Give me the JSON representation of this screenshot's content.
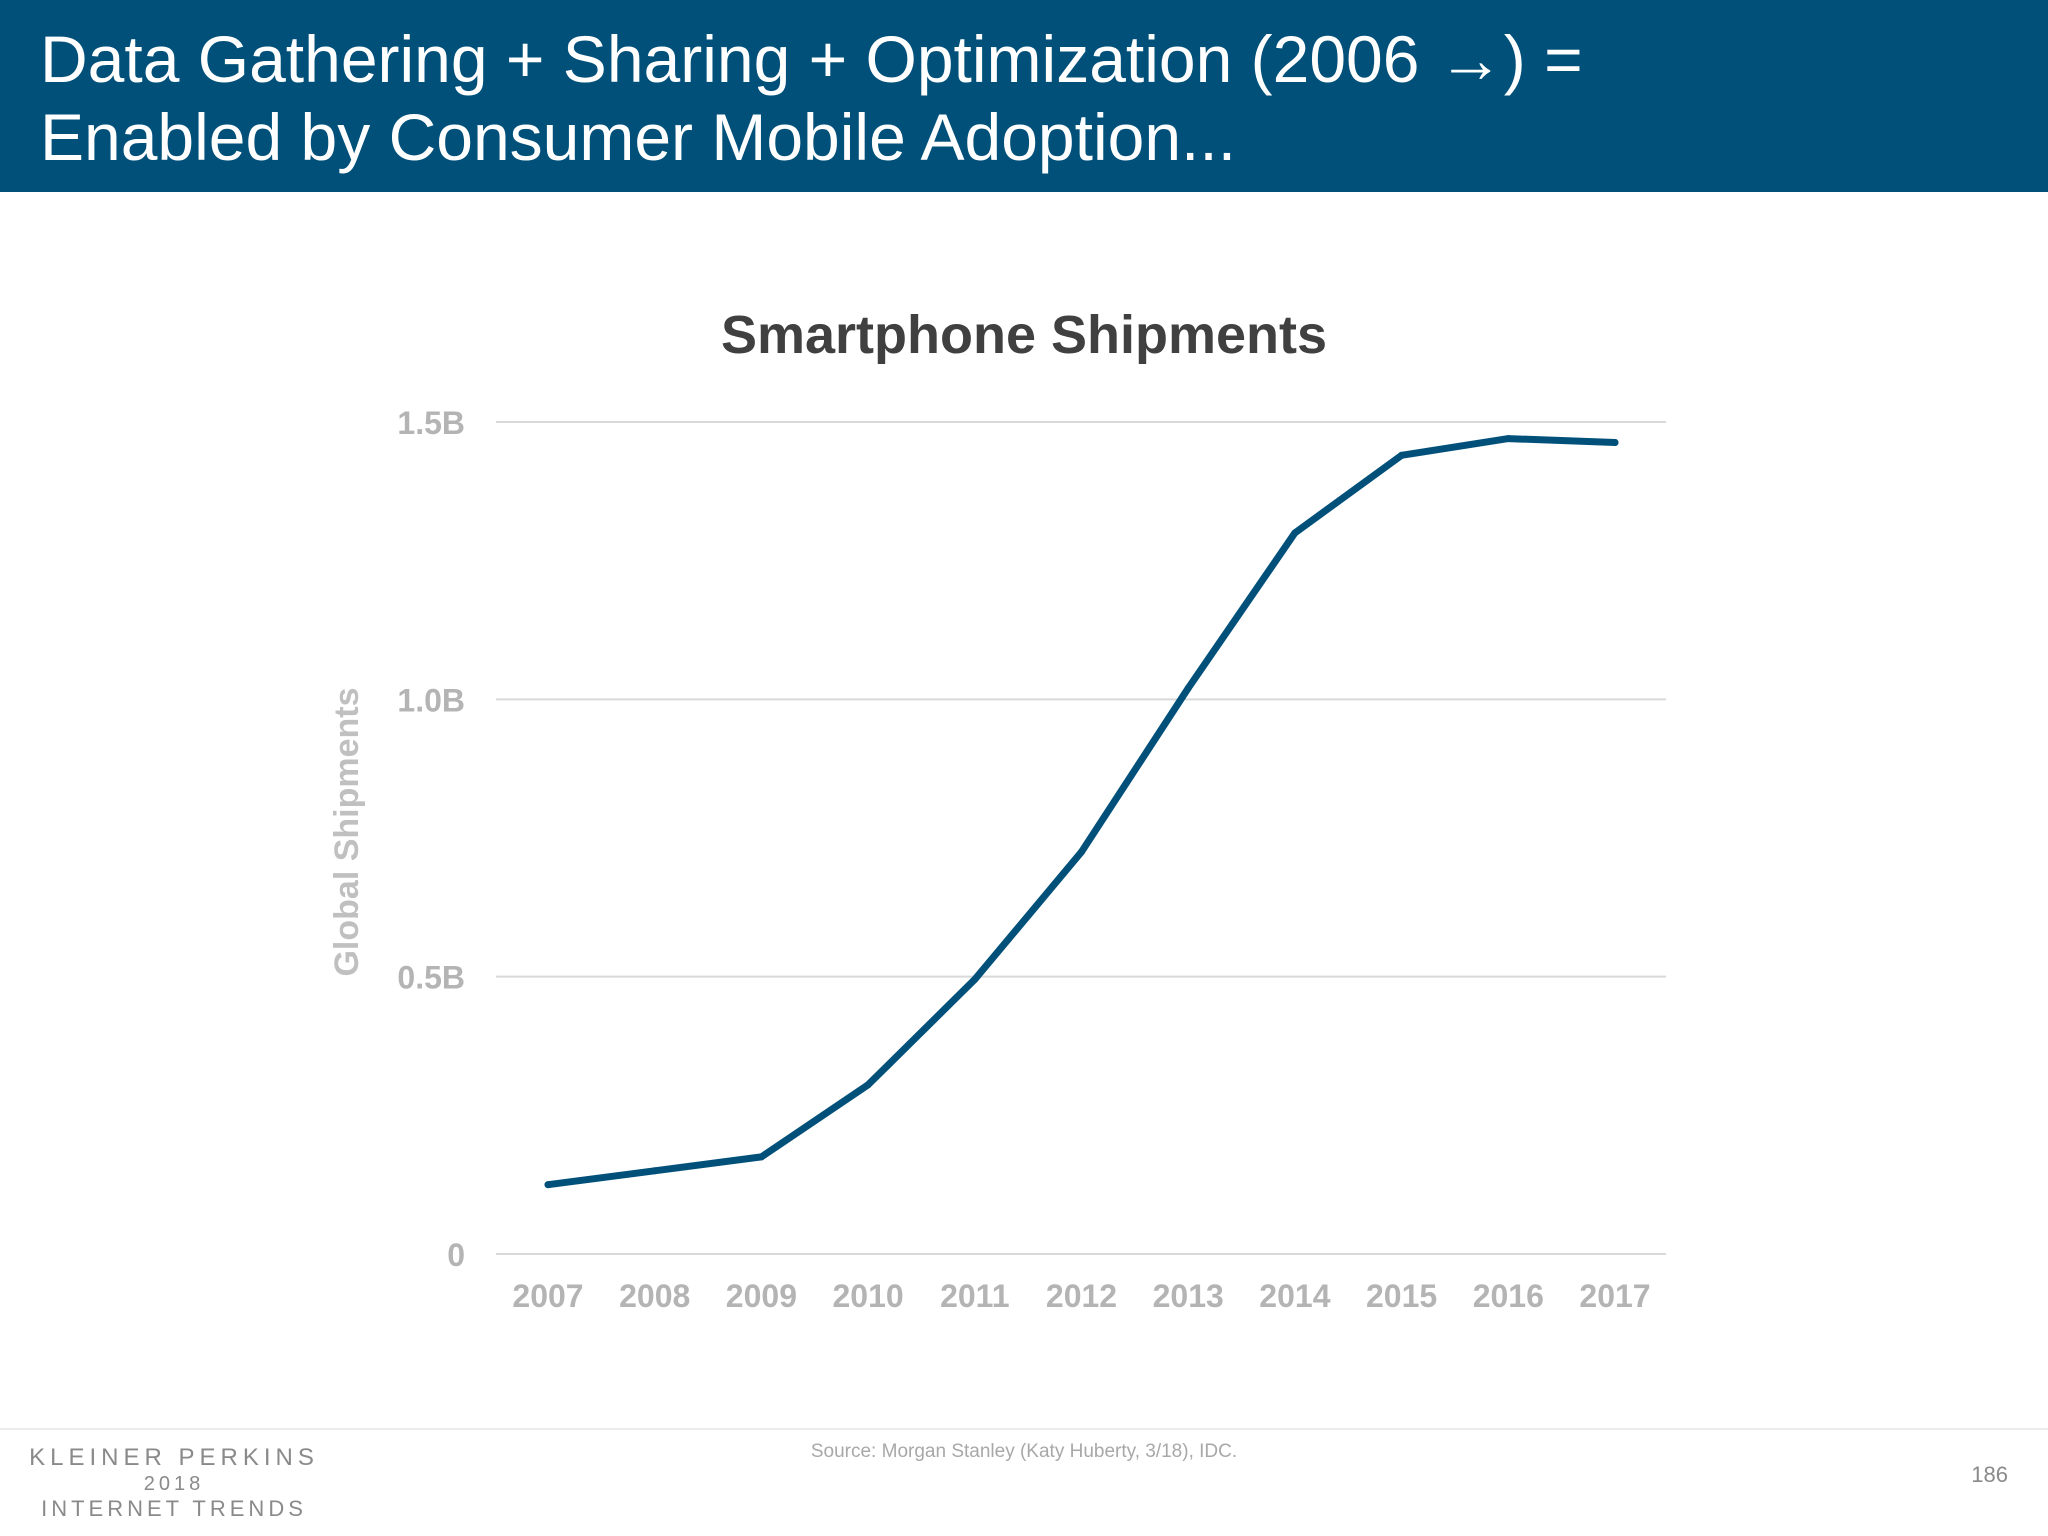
{
  "header": {
    "title_line1": "Data Gathering + Sharing + Optimization (2006 →) =",
    "title_line2": "Enabled by Consumer Mobile Adoption..."
  },
  "chart_data": {
    "type": "line",
    "title": "Smartphone Shipments",
    "xlabel": "",
    "ylabel": "Global Shipments",
    "categories": [
      "2007",
      "2008",
      "2009",
      "2010",
      "2011",
      "2012",
      "2013",
      "2014",
      "2015",
      "2016",
      "2017"
    ],
    "series": [
      {
        "values": [
          0.125,
          0.15,
          0.175,
          0.305,
          0.495,
          0.725,
          1.02,
          1.3,
          1.44,
          1.47,
          1.463
        ],
        "color": "#00507a"
      }
    ],
    "ylim": [
      0,
      1.5
    ],
    "yticks": [
      {
        "value": 0,
        "label": "0"
      },
      {
        "value": 0.5,
        "label": "0.5B"
      },
      {
        "value": 1.0,
        "label": "1.0B"
      },
      {
        "value": 1.5,
        "label": "1.5B"
      }
    ],
    "grid": true,
    "legend": "none",
    "colors": {
      "title": "#404040",
      "axis_text": "#b4b4b4",
      "grid": "#d9d9d9"
    }
  },
  "footer": {
    "logo_line1": "KLEINER PERKINS",
    "logo_line2": "2018",
    "logo_line3": "INTERNET TRENDS",
    "source": "Source: Morgan Stanley (Katy Huberty, 3/18), IDC.",
    "page_number": "186"
  }
}
